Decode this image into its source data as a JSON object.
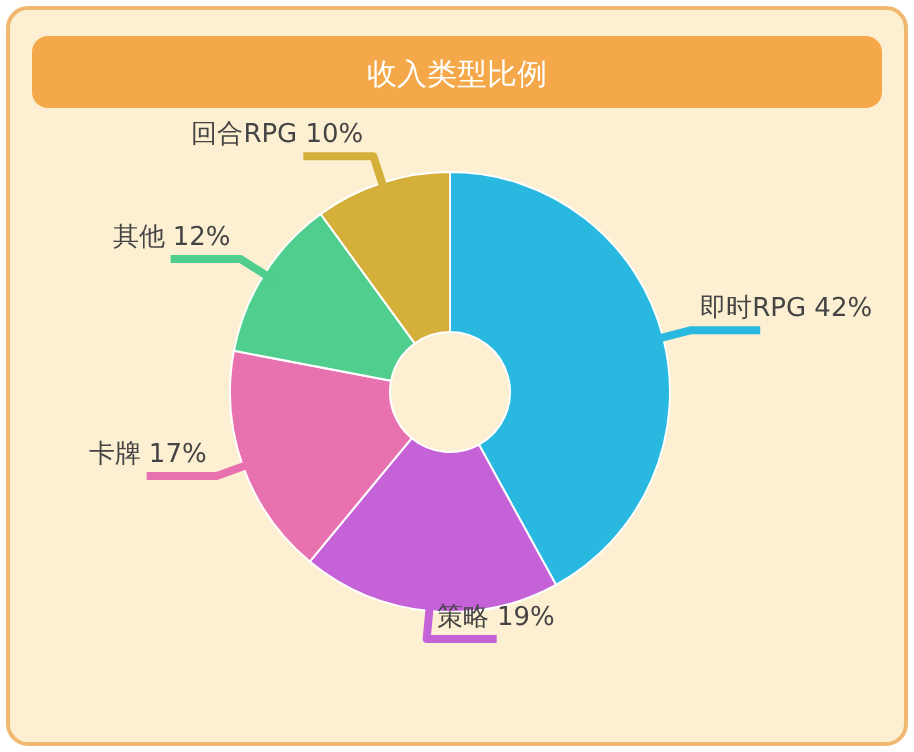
{
  "chart_data": {
    "type": "donut",
    "title": "收入类型比例",
    "categories": [
      "即时RPG",
      "策略",
      "卡牌",
      "其他",
      "回合RPG"
    ],
    "values": [
      42,
      19,
      17,
      12,
      10
    ],
    "colors": [
      "#29b8e0",
      "#c562d8",
      "#e872b0",
      "#4fce8e",
      "#d4b03a"
    ],
    "value_labels": [
      "42%",
      "19%",
      "17%",
      "12%",
      "10%"
    ]
  }
}
